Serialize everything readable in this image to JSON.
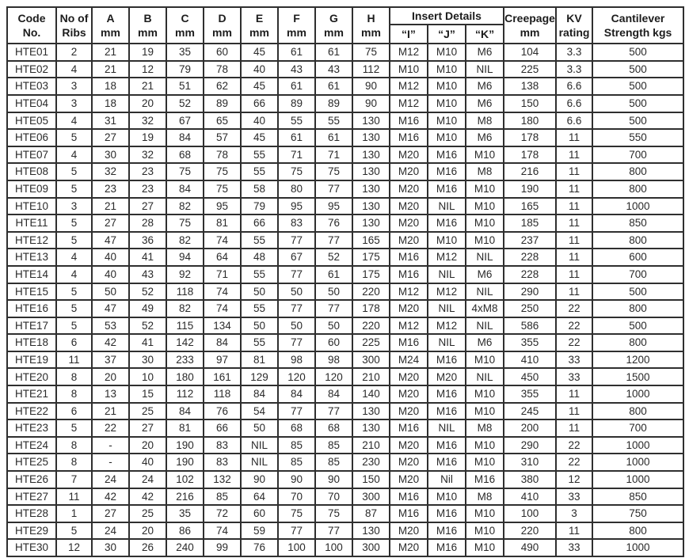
{
  "colors": {
    "border": "#2f2f2f",
    "text": "#222222",
    "background": "#ffffff"
  },
  "table": {
    "header": {
      "code": {
        "line1": "Code",
        "line2": "No."
      },
      "ribs": {
        "line1": "No of",
        "line2": "Ribs"
      },
      "dims": [
        "A",
        "B",
        "C",
        "D",
        "E",
        "F",
        "G",
        "H"
      ],
      "dim_unit": "mm",
      "insert_details_label": "Insert Details",
      "insert_cols": [
        "“I”",
        "“J”",
        "“K”"
      ],
      "creepage": {
        "line1": "Creepage",
        "line2": "mm"
      },
      "kv": {
        "line1": "KV",
        "line2": "rating"
      },
      "cantilever": {
        "line1": "Cantilever",
        "line2": "Strength kgs"
      }
    },
    "rows": [
      {
        "code": "HTE01",
        "ribs": "2",
        "a": "21",
        "b": "19",
        "c": "35",
        "d": "60",
        "e": "45",
        "f": "61",
        "g": "61",
        "h": "75",
        "i": "M12",
        "j": "M10",
        "k": "M6",
        "creepage": "104",
        "kv": "3.3",
        "cantilever": "500"
      },
      {
        "code": "HTE02",
        "ribs": "4",
        "a": "21",
        "b": "12",
        "c": "79",
        "d": "78",
        "e": "40",
        "f": "43",
        "g": "43",
        "h": "112",
        "i": "M10",
        "j": "M10",
        "k": "NIL",
        "creepage": "225",
        "kv": "3.3",
        "cantilever": "500"
      },
      {
        "code": "HTE03",
        "ribs": "3",
        "a": "18",
        "b": "21",
        "c": "51",
        "d": "62",
        "e": "45",
        "f": "61",
        "g": "61",
        "h": "90",
        "i": "M12",
        "j": "M10",
        "k": "M6",
        "creepage": "138",
        "kv": "6.6",
        "cantilever": "500"
      },
      {
        "code": "HTE04",
        "ribs": "3",
        "a": "18",
        "b": "20",
        "c": "52",
        "d": "89",
        "e": "66",
        "f": "89",
        "g": "89",
        "h": "90",
        "i": "M12",
        "j": "M10",
        "k": "M6",
        "creepage": "150",
        "kv": "6.6",
        "cantilever": "500"
      },
      {
        "code": "HTE05",
        "ribs": "4",
        "a": "31",
        "b": "32",
        "c": "67",
        "d": "65",
        "e": "40",
        "f": "55",
        "g": "55",
        "h": "130",
        "i": "M16",
        "j": "M10",
        "k": "M8",
        "creepage": "180",
        "kv": "6.6",
        "cantilever": "500"
      },
      {
        "code": "HTE06",
        "ribs": "5",
        "a": "27",
        "b": "19",
        "c": "84",
        "d": "57",
        "e": "45",
        "f": "61",
        "g": "61",
        "h": "130",
        "i": "M16",
        "j": "M10",
        "k": "M6",
        "creepage": "178",
        "kv": "11",
        "cantilever": "550"
      },
      {
        "code": "HTE07",
        "ribs": "4",
        "a": "30",
        "b": "32",
        "c": "68",
        "d": "78",
        "e": "55",
        "f": "71",
        "g": "71",
        "h": "130",
        "i": "M20",
        "j": "M16",
        "k": "M10",
        "creepage": "178",
        "kv": "11",
        "cantilever": "700"
      },
      {
        "code": "HTE08",
        "ribs": "5",
        "a": "32",
        "b": "23",
        "c": "75",
        "d": "75",
        "e": "55",
        "f": "75",
        "g": "75",
        "h": "130",
        "i": "M20",
        "j": "M16",
        "k": "M8",
        "creepage": "216",
        "kv": "11",
        "cantilever": "800"
      },
      {
        "code": "HTE09",
        "ribs": "5",
        "a": "23",
        "b": "23",
        "c": "84",
        "d": "75",
        "e": "58",
        "f": "80",
        "g": "77",
        "h": "130",
        "i": "M20",
        "j": "M16",
        "k": "M10",
        "creepage": "190",
        "kv": "11",
        "cantilever": "800"
      },
      {
        "code": "HTE10",
        "ribs": "3",
        "a": "21",
        "b": "27",
        "c": "82",
        "d": "95",
        "e": "79",
        "f": "95",
        "g": "95",
        "h": "130",
        "i": "M20",
        "j": "NIL",
        "k": "M10",
        "creepage": "165",
        "kv": "11",
        "cantilever": "1000"
      },
      {
        "code": "HTE11",
        "ribs": "5",
        "a": "27",
        "b": "28",
        "c": "75",
        "d": "81",
        "e": "66",
        "f": "83",
        "g": "76",
        "h": "130",
        "i": "M20",
        "j": "M16",
        "k": "M10",
        "creepage": "185",
        "kv": "11",
        "cantilever": "850"
      },
      {
        "code": "HTE12",
        "ribs": "5",
        "a": "47",
        "b": "36",
        "c": "82",
        "d": "74",
        "e": "55",
        "f": "77",
        "g": "77",
        "h": "165",
        "i": "M20",
        "j": "M10",
        "k": "M10",
        "creepage": "237",
        "kv": "11",
        "cantilever": "800"
      },
      {
        "code": "HTE13",
        "ribs": "4",
        "a": "40",
        "b": "41",
        "c": "94",
        "d": "64",
        "e": "48",
        "f": "67",
        "g": "52",
        "h": "175",
        "i": "M16",
        "j": "M12",
        "k": "NIL",
        "creepage": "228",
        "kv": "11",
        "cantilever": "600"
      },
      {
        "code": "HTE14",
        "ribs": "4",
        "a": "40",
        "b": "43",
        "c": "92",
        "d": "71",
        "e": "55",
        "f": "77",
        "g": "61",
        "h": "175",
        "i": "M16",
        "j": "NIL",
        "k": "M6",
        "creepage": "228",
        "kv": "11",
        "cantilever": "700"
      },
      {
        "code": "HTE15",
        "ribs": "5",
        "a": "50",
        "b": "52",
        "c": "118",
        "d": "74",
        "e": "50",
        "f": "50",
        "g": "50",
        "h": "220",
        "i": "M12",
        "j": "M12",
        "k": "NIL",
        "creepage": "290",
        "kv": "11",
        "cantilever": "500"
      },
      {
        "code": "HTE16",
        "ribs": "5",
        "a": "47",
        "b": "49",
        "c": "82",
        "d": "74",
        "e": "55",
        "f": "77",
        "g": "77",
        "h": "178",
        "i": "M20",
        "j": "NIL",
        "k": "4xM8",
        "creepage": "250",
        "kv": "22",
        "cantilever": "800"
      },
      {
        "code": "HTE17",
        "ribs": "5",
        "a": "53",
        "b": "52",
        "c": "115",
        "d": "134",
        "e": "50",
        "f": "50",
        "g": "50",
        "h": "220",
        "i": "M12",
        "j": "M12",
        "k": "NIL",
        "creepage": "586",
        "kv": "22",
        "cantilever": "500"
      },
      {
        "code": "HTE18",
        "ribs": "6",
        "a": "42",
        "b": "41",
        "c": "142",
        "d": "84",
        "e": "55",
        "f": "77",
        "g": "60",
        "h": "225",
        "i": "M16",
        "j": "NIL",
        "k": "M6",
        "creepage": "355",
        "kv": "22",
        "cantilever": "800"
      },
      {
        "code": "HTE19",
        "ribs": "11",
        "a": "37",
        "b": "30",
        "c": "233",
        "d": "97",
        "e": "81",
        "f": "98",
        "g": "98",
        "h": "300",
        "i": "M24",
        "j": "M16",
        "k": "M10",
        "creepage": "410",
        "kv": "33",
        "cantilever": "1200"
      },
      {
        "code": "HTE20",
        "ribs": "8",
        "a": "20",
        "b": "10",
        "c": "180",
        "d": "161",
        "e": "129",
        "f": "120",
        "g": "120",
        "h": "210",
        "i": "M20",
        "j": "M20",
        "k": "NIL",
        "creepage": "450",
        "kv": "33",
        "cantilever": "1500"
      },
      {
        "code": "HTE21",
        "ribs": "8",
        "a": "13",
        "b": "15",
        "c": "112",
        "d": "118",
        "e": "84",
        "f": "84",
        "g": "84",
        "h": "140",
        "i": "M20",
        "j": "M16",
        "k": "M10",
        "creepage": "355",
        "kv": "11",
        "cantilever": "1000"
      },
      {
        "code": "HTE22",
        "ribs": "6",
        "a": "21",
        "b": "25",
        "c": "84",
        "d": "76",
        "e": "54",
        "f": "77",
        "g": "77",
        "h": "130",
        "i": "M20",
        "j": "M16",
        "k": "M10",
        "creepage": "245",
        "kv": "11",
        "cantilever": "800"
      },
      {
        "code": "HTE23",
        "ribs": "5",
        "a": "22",
        "b": "27",
        "c": "81",
        "d": "66",
        "e": "50",
        "f": "68",
        "g": "68",
        "h": "130",
        "i": "M16",
        "j": "NIL",
        "k": "M8",
        "creepage": "200",
        "kv": "11",
        "cantilever": "700"
      },
      {
        "code": "HTE24",
        "ribs": "8",
        "a": "-",
        "b": "20",
        "c": "190",
        "d": "83",
        "e": "NIL",
        "f": "85",
        "g": "85",
        "h": "210",
        "i": "M20",
        "j": "M16",
        "k": "M10",
        "creepage": "290",
        "kv": "22",
        "cantilever": "1000"
      },
      {
        "code": "HTE25",
        "ribs": "8",
        "a": "-",
        "b": "40",
        "c": "190",
        "d": "83",
        "e": "NIL",
        "f": "85",
        "g": "85",
        "h": "230",
        "i": "M20",
        "j": "M16",
        "k": "M10",
        "creepage": "310",
        "kv": "22",
        "cantilever": "1000"
      },
      {
        "code": "HTE26",
        "ribs": "7",
        "a": "24",
        "b": "24",
        "c": "102",
        "d": "132",
        "e": "90",
        "f": "90",
        "g": "90",
        "h": "150",
        "i": "M20",
        "j": "Nil",
        "k": "M16",
        "creepage": "380",
        "kv": "12",
        "cantilever": "1000"
      },
      {
        "code": "HTE27",
        "ribs": "11",
        "a": "42",
        "b": "42",
        "c": "216",
        "d": "85",
        "e": "64",
        "f": "70",
        "g": "70",
        "h": "300",
        "i": "M16",
        "j": "M10",
        "k": "M8",
        "creepage": "410",
        "kv": "33",
        "cantilever": "850"
      },
      {
        "code": "HTE28",
        "ribs": "1",
        "a": "27",
        "b": "25",
        "c": "35",
        "d": "72",
        "e": "60",
        "f": "75",
        "g": "75",
        "h": "87",
        "i": "M16",
        "j": "M16",
        "k": "M10",
        "creepage": "100",
        "kv": "3",
        "cantilever": "750"
      },
      {
        "code": "HTE29",
        "ribs": "5",
        "a": "24",
        "b": "20",
        "c": "86",
        "d": "74",
        "e": "59",
        "f": "77",
        "g": "77",
        "h": "130",
        "i": "M20",
        "j": "M16",
        "k": "M10",
        "creepage": "220",
        "kv": "11",
        "cantilever": "800"
      },
      {
        "code": "HTE30",
        "ribs": "12",
        "a": "30",
        "b": "26",
        "c": "240",
        "d": "99",
        "e": "76",
        "f": "100",
        "g": "100",
        "h": "300",
        "i": "M20",
        "j": "M16",
        "k": "M10",
        "creepage": "490",
        "kv": "33",
        "cantilever": "1000"
      }
    ]
  }
}
